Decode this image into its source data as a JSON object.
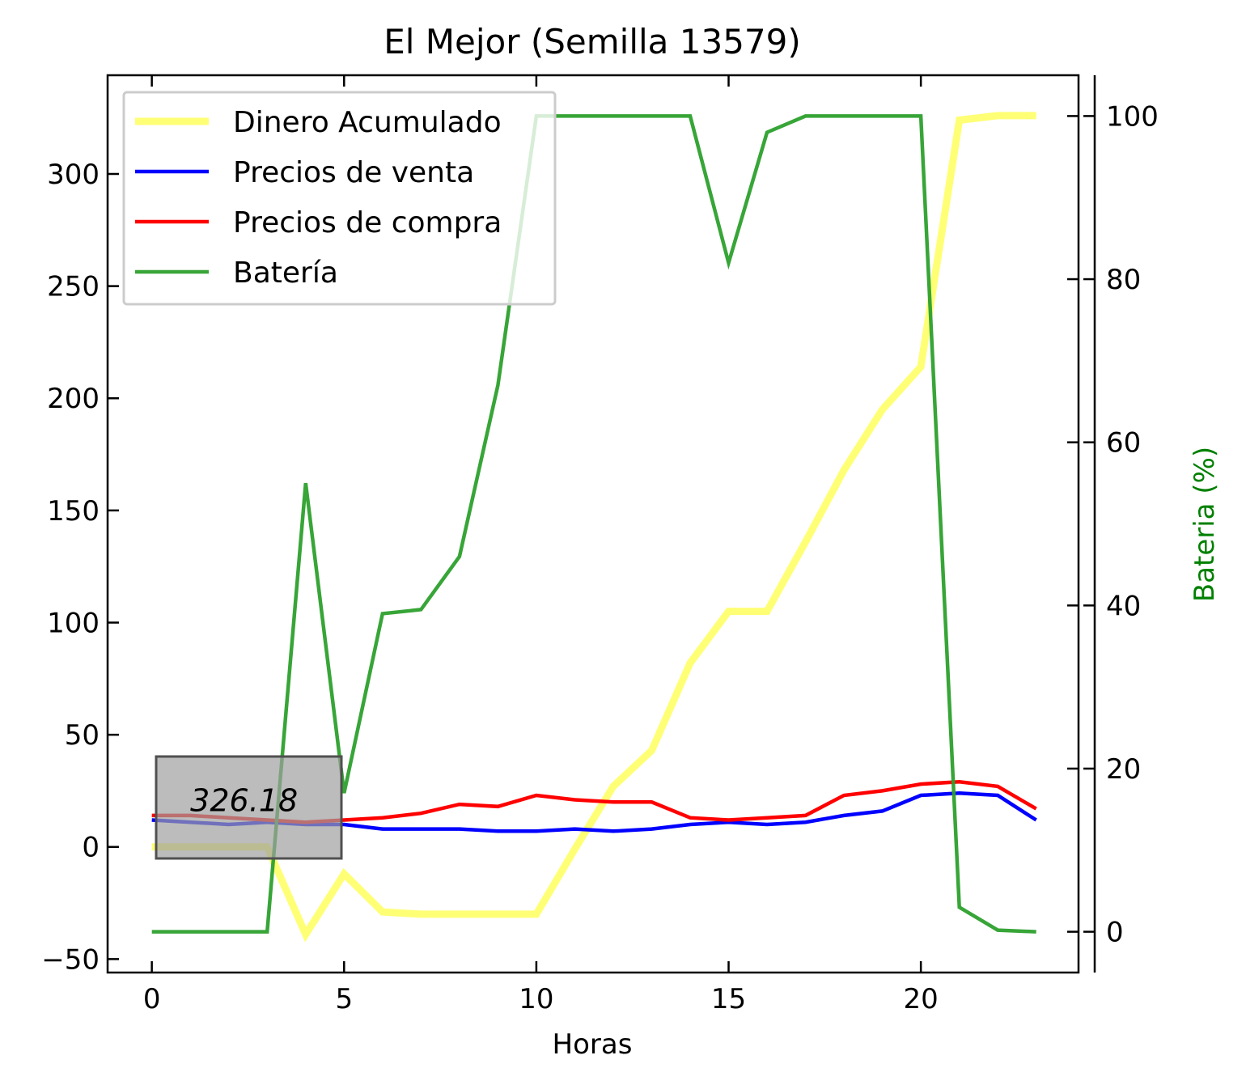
{
  "chart_data": {
    "type": "line",
    "title": "El Mejor (Semilla 13579)",
    "xlabel": "Horas",
    "ylabel": "",
    "y2label": "Bateria (%)",
    "xlim": [
      -1.15,
      24.1
    ],
    "ylim": [
      -56,
      344
    ],
    "y2lim": [
      -5,
      105
    ],
    "xticks": [
      0,
      5,
      10,
      15,
      20
    ],
    "yticks": [
      -50,
      0,
      50,
      100,
      150,
      200,
      250,
      300
    ],
    "y2ticks": [
      0,
      20,
      40,
      60,
      80,
      100
    ],
    "grid": false,
    "legend_position": "top-left",
    "x": [
      0,
      1,
      2,
      3,
      4,
      5,
      6,
      7,
      8,
      9,
      10,
      11,
      12,
      13,
      14,
      15,
      16,
      17,
      18,
      19,
      20,
      21,
      22,
      23
    ],
    "series": [
      {
        "name": "Dinero Acumulado",
        "axis": "left",
        "color": "#ffff66",
        "values": [
          0,
          0,
          0,
          0,
          -39,
          -12,
          -29,
          -30,
          -30,
          -30,
          -30,
          -1,
          27,
          43,
          82,
          105,
          105,
          136,
          168,
          195,
          214,
          324,
          326,
          326
        ]
      },
      {
        "name": "Precios de venta",
        "axis": "left",
        "color": "#0000ff",
        "values": [
          12,
          11,
          10,
          11,
          10,
          10,
          8,
          8,
          8,
          7,
          7,
          8,
          7,
          8,
          10,
          11,
          10,
          11,
          14,
          16,
          23,
          24,
          23,
          12
        ]
      },
      {
        "name": "Precios de compra",
        "axis": "left",
        "color": "#ff0000",
        "values": [
          14,
          14,
          13,
          12,
          11,
          12,
          13,
          15,
          19,
          18,
          23,
          21,
          20,
          20,
          13,
          12,
          13,
          14,
          23,
          25,
          28,
          29,
          27,
          17
        ]
      },
      {
        "name": "Batería",
        "axis": "right",
        "color": "#2ca02c",
        "values": [
          0,
          0,
          0,
          0,
          55,
          17,
          39,
          39.5,
          46,
          67,
          100,
          100,
          100,
          100,
          100,
          82,
          98,
          100,
          100,
          100,
          100,
          3,
          0.2,
          0
        ]
      }
    ],
    "annotations": [
      {
        "text": "326.18",
        "x": 1,
        "y": 16
      }
    ]
  }
}
